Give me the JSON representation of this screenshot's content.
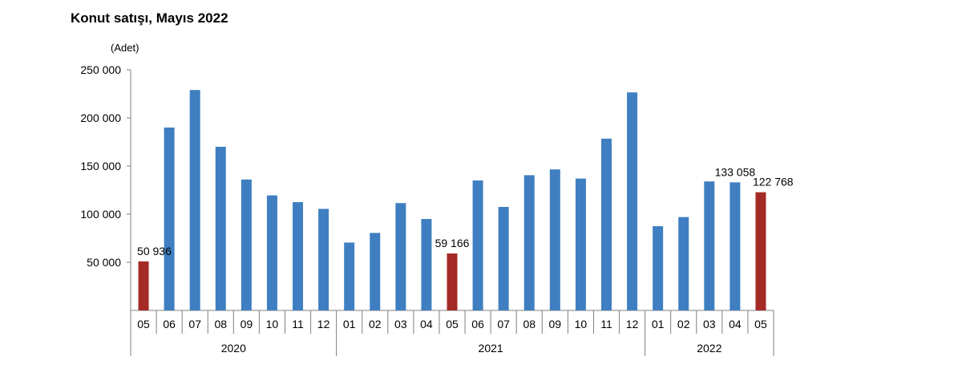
{
  "chart_data": {
    "type": "bar",
    "title": "Konut satışı, Mayıs 2022",
    "unit_label": "(Adet)",
    "ylim": [
      0,
      250000
    ],
    "yticks": [
      {
        "value": 50000,
        "label": "50 000"
      },
      {
        "value": 100000,
        "label": "100 000"
      },
      {
        "value": 150000,
        "label": "150 000"
      },
      {
        "value": 200000,
        "label": "200 000"
      },
      {
        "value": 250000,
        "label": "250 000"
      }
    ],
    "categories": [
      "05",
      "06",
      "07",
      "08",
      "09",
      "10",
      "11",
      "12",
      "01",
      "02",
      "03",
      "04",
      "05",
      "06",
      "07",
      "08",
      "09",
      "10",
      "11",
      "12",
      "01",
      "02",
      "03",
      "04",
      "05"
    ],
    "values": [
      50936,
      190000,
      229000,
      170000,
      136000,
      119500,
      112500,
      105500,
      70500,
      80500,
      111500,
      95000,
      59166,
      135000,
      107500,
      140500,
      146500,
      137000,
      178500,
      226500,
      87500,
      97000,
      134000,
      133058,
      122768
    ],
    "highlight_indices": [
      0,
      12,
      24
    ],
    "data_labels": [
      {
        "index": 0,
        "text": "50 936"
      },
      {
        "index": 12,
        "text": "59 166"
      },
      {
        "index": 23,
        "text": "133 058"
      },
      {
        "index": 24,
        "text": "122 768"
      }
    ],
    "year_groups": [
      {
        "label": "2020",
        "start": 0,
        "end": 7
      },
      {
        "label": "2021",
        "start": 8,
        "end": 19
      },
      {
        "label": "2022",
        "start": 20,
        "end": 24
      }
    ],
    "colors": {
      "bar": "#3f7fc1",
      "highlight": "#a42a26",
      "axis": "#808080"
    },
    "grid": false,
    "legend": "none"
  }
}
